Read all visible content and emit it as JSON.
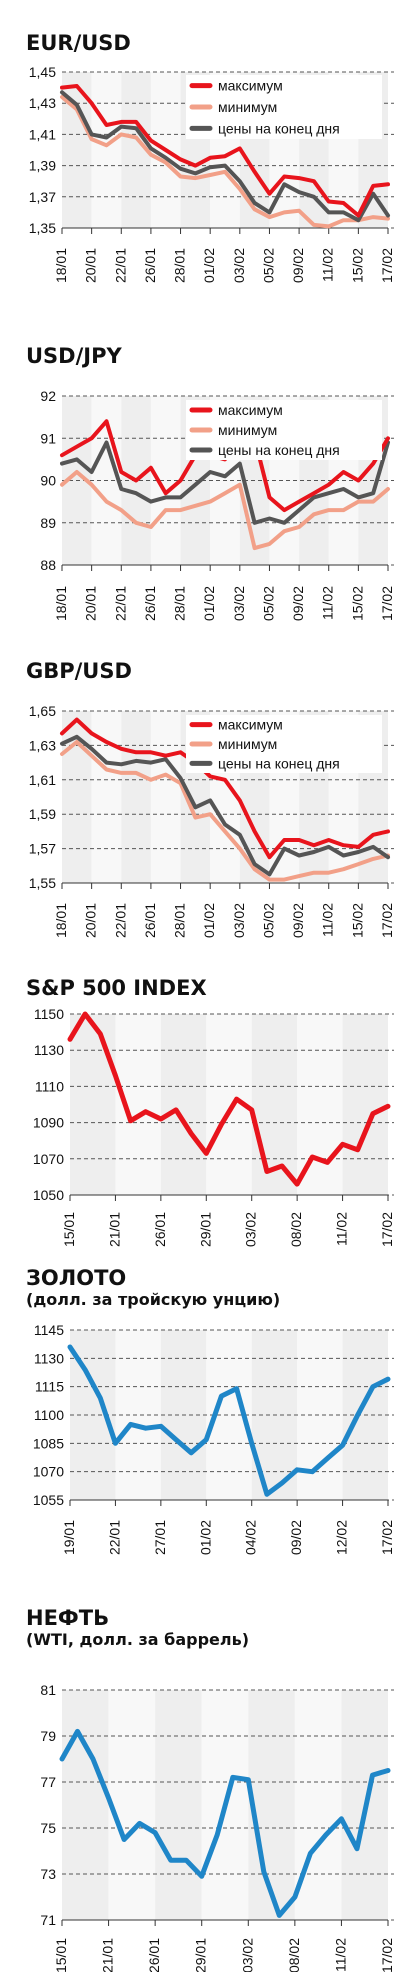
{
  "colors": {
    "max": "#e8141c",
    "min": "#f2a088",
    "close": "#555555",
    "single_red": "#e8141c",
    "single_blue": "#1f86c8",
    "band_light": "#eeeeee",
    "band_lighter": "#f8f8f8"
  },
  "chart_data": [
    {
      "type": "line",
      "title": "EUR/USD",
      "subtitle": "",
      "x": [
        "18/01",
        "19/01",
        "20/01",
        "21/01",
        "22/01",
        "25/01",
        "26/01",
        "27/01",
        "28/01",
        "29/01",
        "01/02",
        "02/02",
        "03/02",
        "04/02",
        "05/02",
        "08/02",
        "09/02",
        "10/02",
        "11/02",
        "12/02",
        "15/02",
        "16/02",
        "17/02"
      ],
      "xticks": [
        "18/01",
        "20/01",
        "22/01",
        "26/01",
        "28/01",
        "01/02",
        "03/02",
        "05/02",
        "09/02",
        "11/02",
        "15/02",
        "17/02"
      ],
      "yticks": [
        1.35,
        1.37,
        1.39,
        1.41,
        1.43,
        1.45
      ],
      "ytick_labels": [
        "1,35",
        "1,37",
        "1,39",
        "1,41",
        "1,43",
        "1,45"
      ],
      "ylim": [
        1.35,
        1.45
      ],
      "legend": {
        "placement": "top-right",
        "entries": [
          "максимум",
          "минимум",
          "цены на конец дня"
        ]
      },
      "series": [
        {
          "name": "максимум",
          "values": [
            1.44,
            1.441,
            1.43,
            1.416,
            1.418,
            1.418,
            1.406,
            1.4,
            1.394,
            1.39,
            1.395,
            1.396,
            1.401,
            1.386,
            1.372,
            1.383,
            1.382,
            1.38,
            1.367,
            1.366,
            1.358,
            1.377,
            1.378
          ]
        },
        {
          "name": "минимум",
          "values": [
            1.434,
            1.426,
            1.407,
            1.403,
            1.41,
            1.408,
            1.397,
            1.392,
            1.383,
            1.382,
            1.384,
            1.386,
            1.375,
            1.362,
            1.357,
            1.36,
            1.361,
            1.352,
            1.351,
            1.355,
            1.355,
            1.357,
            1.356
          ]
        },
        {
          "name": "цены на конец дня",
          "values": [
            1.437,
            1.429,
            1.41,
            1.408,
            1.415,
            1.414,
            1.401,
            1.395,
            1.388,
            1.385,
            1.389,
            1.39,
            1.38,
            1.366,
            1.36,
            1.378,
            1.373,
            1.37,
            1.36,
            1.36,
            1.355,
            1.372,
            1.358
          ]
        }
      ]
    },
    {
      "type": "line",
      "title": "USD/JPY",
      "subtitle": "",
      "x": [
        "18/01",
        "19/01",
        "20/01",
        "21/01",
        "22/01",
        "25/01",
        "26/01",
        "27/01",
        "28/01",
        "29/01",
        "01/02",
        "02/02",
        "03/02",
        "04/02",
        "05/02",
        "08/02",
        "09/02",
        "10/02",
        "11/02",
        "12/02",
        "15/02",
        "16/02",
        "17/02"
      ],
      "xticks": [
        "18/01",
        "20/01",
        "22/01",
        "26/01",
        "28/01",
        "01/02",
        "03/02",
        "05/02",
        "09/02",
        "11/02",
        "15/02",
        "17/02"
      ],
      "yticks": [
        88,
        89,
        90,
        91,
        92
      ],
      "ytick_labels": [
        "88",
        "89",
        "90",
        "91",
        "92"
      ],
      "ylim": [
        88,
        92
      ],
      "legend": {
        "placement": "top-right",
        "entries": [
          "максимум",
          "минимум",
          "цены на конец дня"
        ]
      },
      "series": [
        {
          "name": "максимум",
          "values": [
            90.6,
            90.8,
            91.0,
            91.4,
            90.2,
            90.0,
            90.3,
            89.7,
            90.0,
            90.6,
            90.6,
            90.5,
            91.0,
            91.0,
            89.6,
            89.3,
            89.5,
            89.7,
            89.9,
            90.2,
            90.0,
            90.4,
            91.0
          ]
        },
        {
          "name": "минимум",
          "values": [
            89.9,
            90.2,
            89.9,
            89.5,
            89.3,
            89.0,
            88.9,
            89.3,
            89.3,
            89.4,
            89.5,
            89.7,
            89.9,
            88.4,
            88.5,
            88.8,
            88.9,
            89.2,
            89.3,
            89.3,
            89.5,
            89.5,
            89.8
          ]
        },
        {
          "name": "цены на конец дня",
          "values": [
            90.4,
            90.5,
            90.2,
            90.9,
            89.8,
            89.7,
            89.5,
            89.6,
            89.6,
            89.9,
            90.2,
            90.1,
            90.4,
            89.0,
            89.1,
            89.0,
            89.3,
            89.6,
            89.7,
            89.8,
            89.6,
            89.7,
            90.9
          ]
        }
      ]
    },
    {
      "type": "line",
      "title": "GBP/USD",
      "subtitle": "",
      "x": [
        "18/01",
        "19/01",
        "20/01",
        "21/01",
        "22/01",
        "25/01",
        "26/01",
        "27/01",
        "28/01",
        "29/01",
        "01/02",
        "02/02",
        "03/02",
        "04/02",
        "05/02",
        "08/02",
        "09/02",
        "10/02",
        "11/02",
        "12/02",
        "15/02",
        "16/02",
        "17/02"
      ],
      "xticks": [
        "18/01",
        "20/01",
        "22/01",
        "26/01",
        "28/01",
        "01/02",
        "03/02",
        "05/02",
        "09/02",
        "11/02",
        "15/02",
        "17/02"
      ],
      "yticks": [
        1.55,
        1.57,
        1.59,
        1.61,
        1.63,
        1.65
      ],
      "ytick_labels": [
        "1,55",
        "1,57",
        "1,59",
        "1,61",
        "1,63",
        "1,65"
      ],
      "ylim": [
        1.55,
        1.65
      ],
      "legend": {
        "placement": "top-right",
        "entries": [
          "максимум",
          "минимум",
          "цены на конец дня"
        ]
      },
      "series": [
        {
          "name": "максимум",
          "values": [
            1.637,
            1.645,
            1.637,
            1.632,
            1.628,
            1.626,
            1.626,
            1.624,
            1.626,
            1.62,
            1.612,
            1.61,
            1.598,
            1.58,
            1.565,
            1.575,
            1.575,
            1.572,
            1.575,
            1.572,
            1.571,
            1.578,
            1.58
          ]
        },
        {
          "name": "минимум",
          "values": [
            1.625,
            1.632,
            1.624,
            1.616,
            1.614,
            1.614,
            1.61,
            1.613,
            1.608,
            1.588,
            1.59,
            1.58,
            1.57,
            1.558,
            1.552,
            1.552,
            1.554,
            1.556,
            1.556,
            1.558,
            1.561,
            1.564,
            1.566
          ]
        },
        {
          "name": "цены на конец дня",
          "values": [
            1.631,
            1.635,
            1.628,
            1.62,
            1.619,
            1.621,
            1.62,
            1.622,
            1.611,
            1.594,
            1.598,
            1.584,
            1.578,
            1.561,
            1.555,
            1.57,
            1.566,
            1.568,
            1.571,
            1.566,
            1.568,
            1.571,
            1.565
          ]
        }
      ]
    },
    {
      "type": "line",
      "title": "S&P 500 INDEX",
      "subtitle": "",
      "x": [
        "15/01",
        "19/01",
        "20/01",
        "21/01",
        "22/01",
        "25/01",
        "26/01",
        "27/01",
        "28/01",
        "29/01",
        "01/02",
        "02/02",
        "03/02",
        "04/02",
        "05/02",
        "08/02",
        "09/02",
        "10/02",
        "11/02",
        "12/02",
        "16/02",
        "17/02"
      ],
      "xticks": [
        "15/01",
        "21/01",
        "26/01",
        "29/01",
        "03/02",
        "08/02",
        "11/02",
        "17/02"
      ],
      "yticks": [
        1050,
        1070,
        1090,
        1110,
        1130,
        1150
      ],
      "ytick_labels": [
        "1050",
        "1070",
        "1090",
        "1110",
        "1130",
        "1150"
      ],
      "ylim": [
        1050,
        1150
      ],
      "series": [
        {
          "name": "",
          "values": [
            1136,
            1150,
            1139,
            1116,
            1091,
            1096,
            1092,
            1097,
            1084,
            1073,
            1089,
            1103,
            1097,
            1063,
            1066,
            1056,
            1071,
            1068,
            1078,
            1075,
            1095,
            1099
          ]
        }
      ]
    },
    {
      "type": "line",
      "title": "ЗОЛОТО",
      "subtitle": "(долл. за тройскую унцию)",
      "x": [
        "19/01",
        "20/01",
        "21/01",
        "22/01",
        "25/01",
        "26/01",
        "27/01",
        "28/01",
        "29/01",
        "01/02",
        "02/02",
        "03/02",
        "04/02",
        "05/02",
        "08/02",
        "09/02",
        "10/02",
        "11/02",
        "12/02",
        "15/02",
        "16/02",
        "17/02"
      ],
      "xticks": [
        "19/01",
        "22/01",
        "27/01",
        "01/02",
        "04/02",
        "09/02",
        "12/02",
        "17/02"
      ],
      "yticks": [
        1055,
        1070,
        1085,
        1100,
        1115,
        1130,
        1145
      ],
      "ytick_labels": [
        "1055",
        "1070",
        "1085",
        "1100",
        "1115",
        "1130",
        "1145"
      ],
      "ylim": [
        1055,
        1145
      ],
      "series": [
        {
          "name": "",
          "values": [
            1136,
            1124,
            1109,
            1085,
            1095,
            1093,
            1094,
            1087,
            1080,
            1087,
            1110,
            1114,
            1085,
            1058,
            1064,
            1071,
            1070,
            1077,
            1084,
            1100,
            1115,
            1119
          ]
        }
      ]
    },
    {
      "type": "line",
      "title": "НЕФТЬ",
      "subtitle": "(WTI, долл. за баррель)",
      "x": [
        "15/01",
        "19/01",
        "20/01",
        "21/01",
        "22/01",
        "25/01",
        "26/01",
        "27/01",
        "28/01",
        "29/01",
        "01/02",
        "02/02",
        "03/02",
        "04/02",
        "05/02",
        "08/02",
        "09/02",
        "10/02",
        "11/02",
        "12/02",
        "16/02",
        "17/02"
      ],
      "xticks": [
        "15/01",
        "21/01",
        "26/01",
        "29/01",
        "03/02",
        "08/02",
        "11/02",
        "17/02"
      ],
      "yticks": [
        71,
        73,
        75,
        77,
        79,
        81
      ],
      "ytick_labels": [
        "71",
        "73",
        "75",
        "77",
        "79",
        "81"
      ],
      "ylim": [
        71,
        81
      ],
      "series": [
        {
          "name": "",
          "values": [
            78.0,
            79.2,
            78.0,
            76.3,
            74.5,
            75.2,
            74.8,
            73.6,
            73.6,
            72.9,
            74.7,
            77.2,
            77.1,
            73.1,
            71.2,
            72.0,
            73.9,
            74.7,
            75.4,
            74.1,
            77.3,
            77.5
          ]
        }
      ]
    }
  ]
}
